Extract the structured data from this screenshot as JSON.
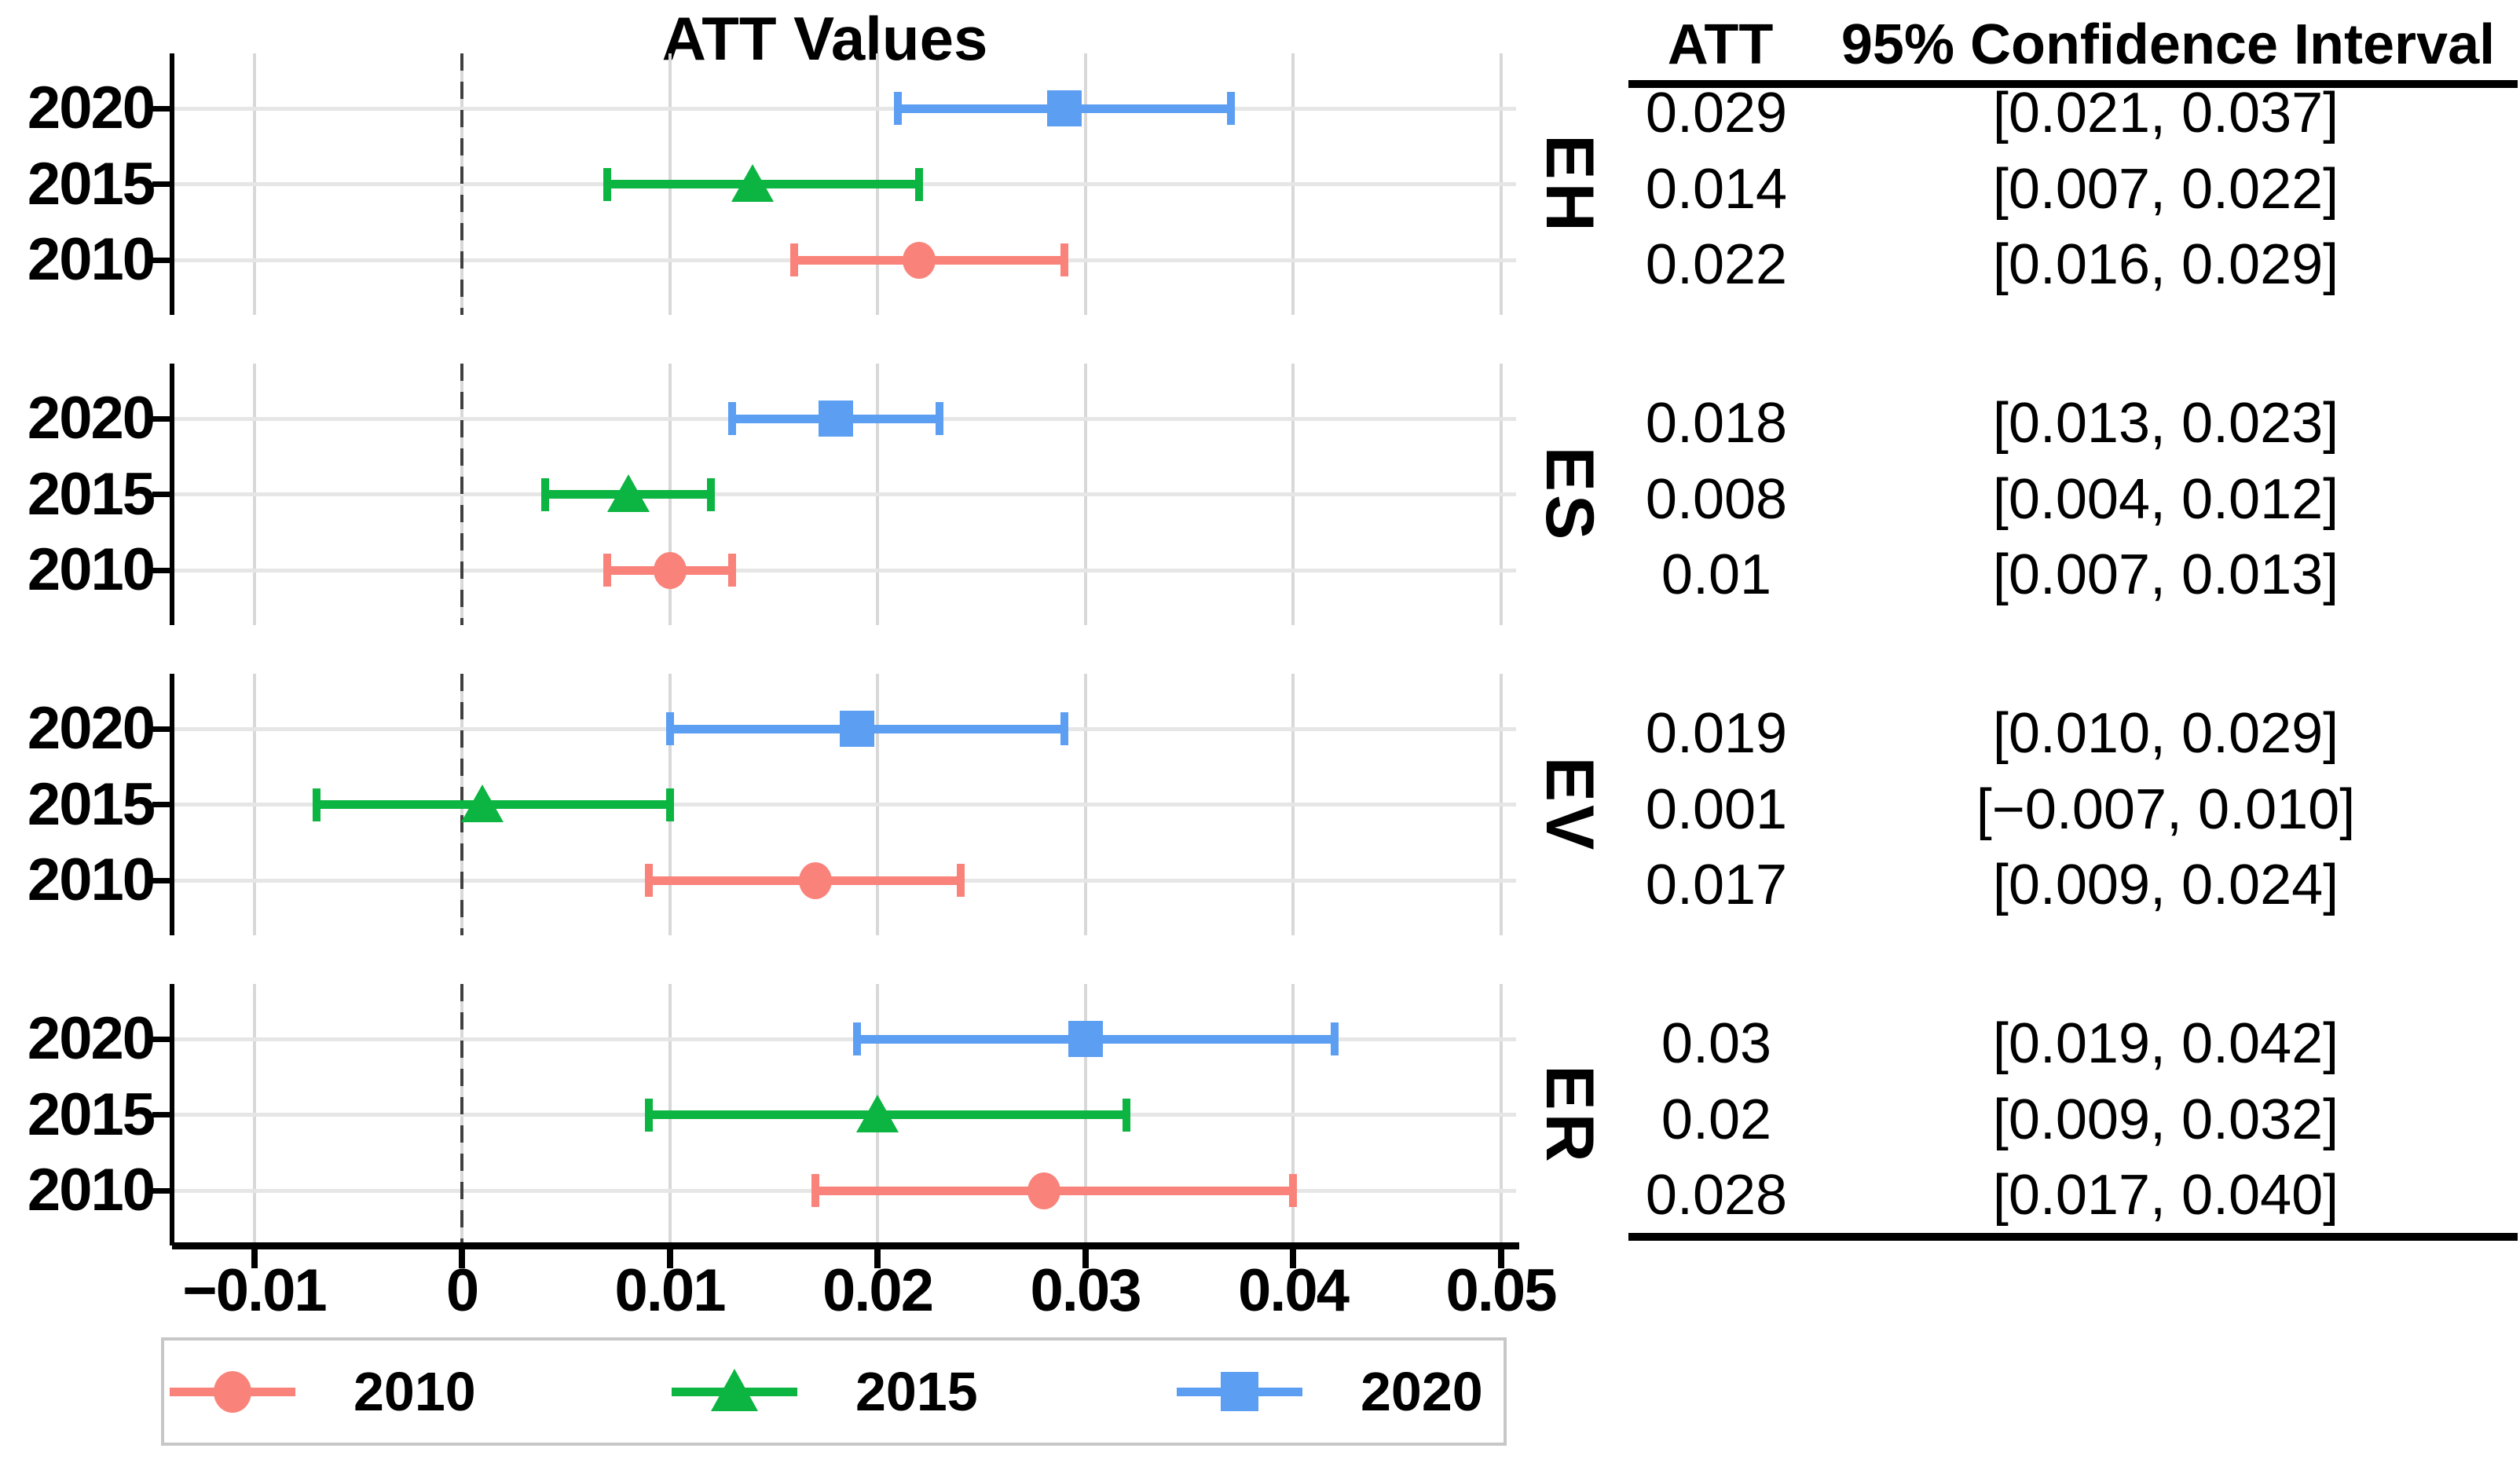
{
  "chart_data": {
    "type": "scatter",
    "subtype": "forest-plot-with-error-bars",
    "title": "ATT Values",
    "xlabel": "",
    "ylabel": "",
    "xlim": [
      -0.0138,
      0.0508
    ],
    "x_ticks": [
      -0.01,
      0,
      0.01,
      0.02,
      0.03,
      0.04,
      0.05
    ],
    "x_tick_labels": [
      "−0.01",
      "0",
      "0.01",
      "0.02",
      "0.03",
      "0.04",
      "0.05"
    ],
    "zero_line_x": 0,
    "grid": "major-x-gridlines and per-row horizontal gridlines",
    "legend_position": "bottom",
    "y_axis_labels_per_facet": [
      "2020",
      "2015",
      "2010"
    ],
    "series_styles": {
      "2010": {
        "color": "#F9837A",
        "marker": "circle"
      },
      "2015": {
        "color": "#0CB441",
        "marker": "triangle-up"
      },
      "2020": {
        "color": "#5B9EF2",
        "marker": "square"
      }
    },
    "facets": [
      {
        "label": "EH",
        "rows": [
          {
            "series": "2020",
            "att": 0.029,
            "ci_low": 0.021,
            "ci_high": 0.037,
            "att_text": "0.029",
            "ci_text": "[0.021, 0.037]"
          },
          {
            "series": "2015",
            "att": 0.014,
            "ci_low": 0.007,
            "ci_high": 0.022,
            "att_text": "0.014",
            "ci_text": "[0.007, 0.022]"
          },
          {
            "series": "2010",
            "att": 0.022,
            "ci_low": 0.016,
            "ci_high": 0.029,
            "att_text": "0.022",
            "ci_text": "[0.016, 0.029]"
          }
        ]
      },
      {
        "label": "ES",
        "rows": [
          {
            "series": "2020",
            "att": 0.018,
            "ci_low": 0.013,
            "ci_high": 0.023,
            "att_text": "0.018",
            "ci_text": "[0.013, 0.023]"
          },
          {
            "series": "2015",
            "att": 0.008,
            "ci_low": 0.004,
            "ci_high": 0.012,
            "att_text": "0.008",
            "ci_text": "[0.004, 0.012]"
          },
          {
            "series": "2010",
            "att": 0.01,
            "ci_low": 0.007,
            "ci_high": 0.013,
            "att_text": "0.01",
            "ci_text": "[0.007, 0.013]"
          }
        ]
      },
      {
        "label": "EV",
        "rows": [
          {
            "series": "2020",
            "att": 0.019,
            "ci_low": 0.01,
            "ci_high": 0.029,
            "att_text": "0.019",
            "ci_text": "[0.010, 0.029]"
          },
          {
            "series": "2015",
            "att": 0.001,
            "ci_low": -0.007,
            "ci_high": 0.01,
            "att_text": "0.001",
            "ci_text": "[−0.007, 0.010]"
          },
          {
            "series": "2010",
            "att": 0.017,
            "ci_low": 0.009,
            "ci_high": 0.024,
            "att_text": "0.017",
            "ci_text": "[0.009, 0.024]"
          }
        ]
      },
      {
        "label": "ER",
        "rows": [
          {
            "series": "2020",
            "att": 0.03,
            "ci_low": 0.019,
            "ci_high": 0.042,
            "att_text": "0.03",
            "ci_text": "[0.019, 0.042]"
          },
          {
            "series": "2015",
            "att": 0.02,
            "ci_low": 0.009,
            "ci_high": 0.032,
            "att_text": "0.02",
            "ci_text": "[0.009, 0.032]"
          },
          {
            "series": "2010",
            "att": 0.028,
            "ci_low": 0.017,
            "ci_high": 0.04,
            "att_text": "0.028",
            "ci_text": "[0.017, 0.040]"
          }
        ]
      }
    ]
  },
  "table": {
    "header_att": "ATT",
    "header_ci": "95% Confidence Interval"
  },
  "legend": {
    "items": [
      {
        "label": "2010",
        "series": "2010"
      },
      {
        "label": "2015",
        "series": "2015"
      },
      {
        "label": "2020",
        "series": "2020"
      }
    ]
  },
  "colors": {
    "grid_vertical": "#d8d8d8",
    "grid_horizontal": "#e6e6e6",
    "zero_dash": "#404040",
    "axis": "#000000",
    "legend_border": "#c7c7c7"
  }
}
